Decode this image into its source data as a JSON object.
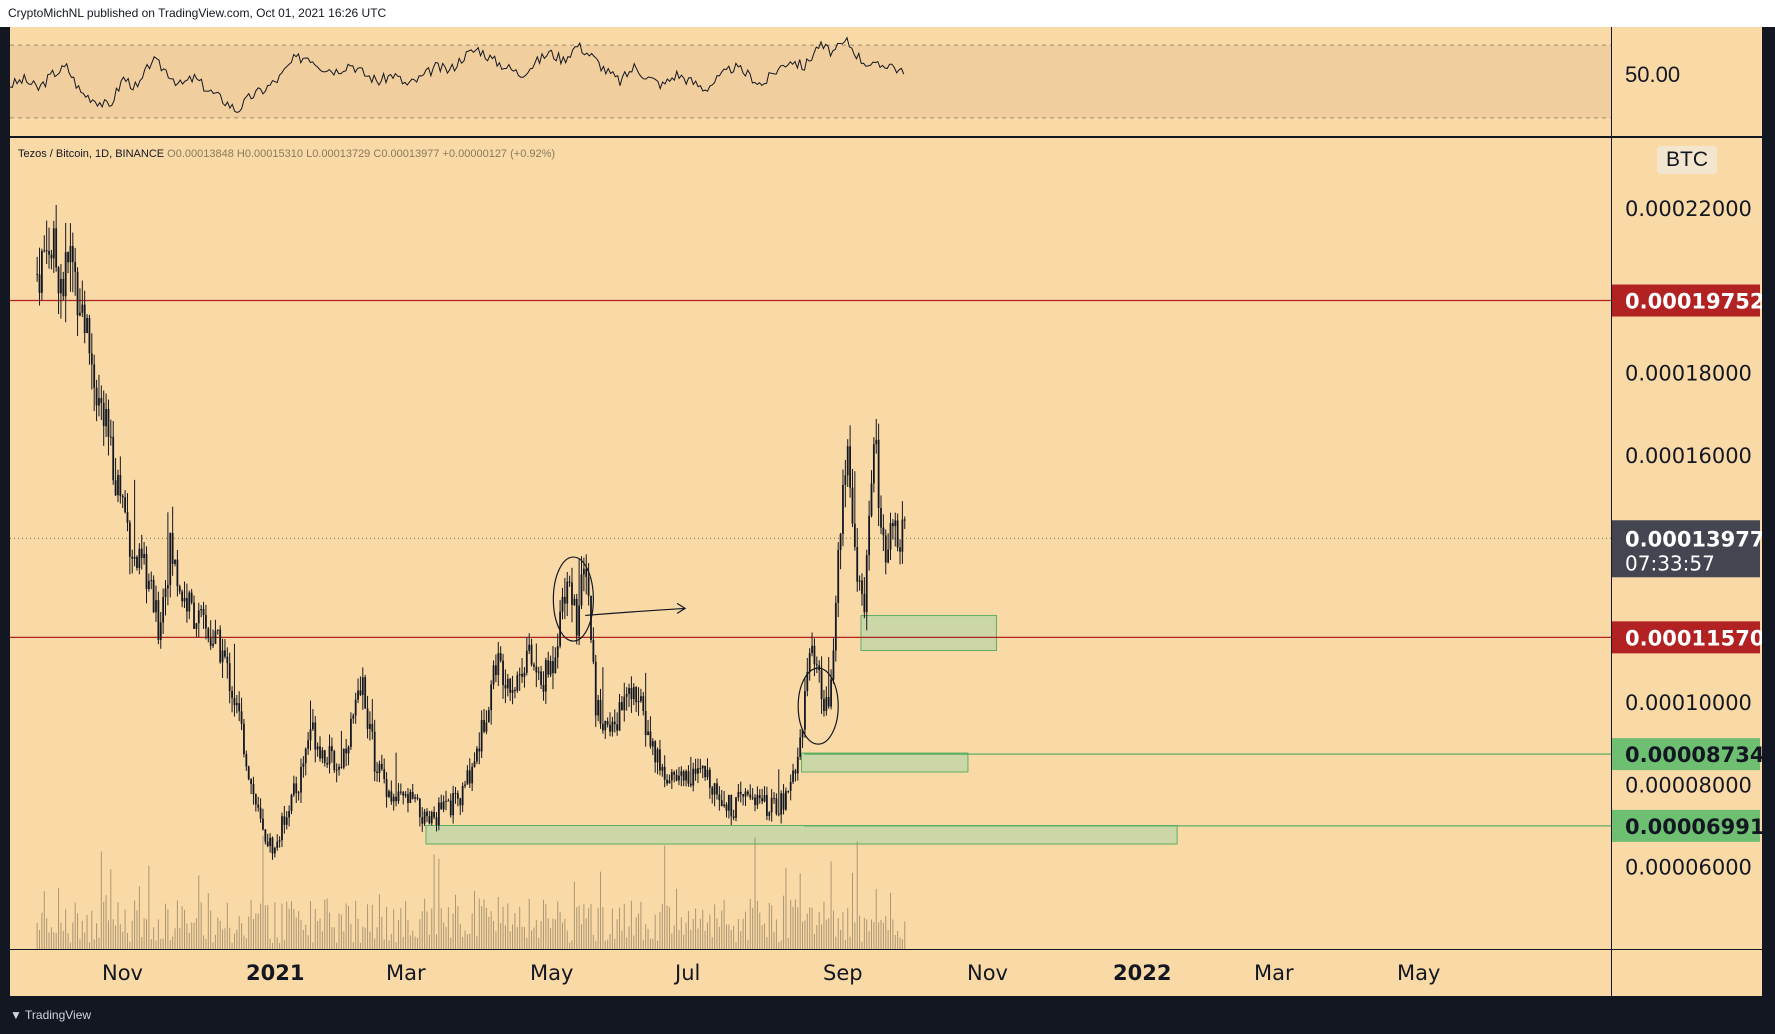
{
  "header": {
    "published": "CryptoMichNL published on TradingView.com, Oct 01, 2021 16:26 UTC"
  },
  "footer": {
    "brand": "TradingView",
    "logo_icon": "tradingview-logo-icon"
  },
  "legend": {
    "symbol": "Tezos / Bitcoin, 1D, BINANCE",
    "open_label": "O",
    "open": "0.00013848",
    "high_label": "H",
    "high": "0.00015310",
    "low_label": "L",
    "low": "0.00013729",
    "close_label": "C",
    "close": "0.00013977",
    "change": "+0.00000127 (+0.92%)"
  },
  "colors": {
    "background": "#f9d9a6",
    "candle": "#131722",
    "resistance": "#b22222",
    "support_zone": "#a5d6a7",
    "support_line": "#5dae63",
    "current_tag": "#434651"
  },
  "chart_data": {
    "type": "candlestick",
    "price_unit": "BTC",
    "yaxis_ticks": [
      "0.00022000",
      "0.00018000",
      "0.00016000",
      "0.00010000",
      "0.00008000",
      "0.00006000"
    ],
    "ylim": [
      4e-05,
      0.000237
    ],
    "xaxis_ticks": [
      {
        "label": "Nov",
        "bold": false
      },
      {
        "label": "2021",
        "bold": true
      },
      {
        "label": "Mar",
        "bold": false
      },
      {
        "label": "May",
        "bold": false
      },
      {
        "label": "Jul",
        "bold": false
      },
      {
        "label": "Sep",
        "bold": false
      },
      {
        "label": "Nov",
        "bold": false
      },
      {
        "label": "2022",
        "bold": true
      },
      {
        "label": "Mar",
        "bold": false
      },
      {
        "label": "May",
        "bold": false
      }
    ],
    "price_path": [
      [
        "2020-10-01",
        0.000204
      ],
      [
        "2020-10-06",
        0.000212
      ],
      [
        "2020-10-12",
        0.000202
      ],
      [
        "2020-10-15",
        0.000208
      ],
      [
        "2020-10-20",
        0.000196
      ],
      [
        "2020-10-26",
        0.000176
      ],
      [
        "2020-11-01",
        0.00016
      ],
      [
        "2020-11-06",
        0.000149
      ],
      [
        "2020-11-11",
        0.000134
      ],
      [
        "2020-11-16",
        0.000131
      ],
      [
        "2020-11-21",
        0.000118
      ],
      [
        "2020-11-26",
        0.000137
      ],
      [
        "2020-12-01",
        0.000126
      ],
      [
        "2020-12-10",
        0.000118
      ],
      [
        "2020-12-18",
        0.000112
      ],
      [
        "2020-12-25",
        9.6e-05
      ],
      [
        "2020-12-30",
        8e-05
      ],
      [
        "2021-01-04",
        6.8e-05
      ],
      [
        "2021-01-09",
        6.4e-05
      ],
      [
        "2021-01-14",
        7.4e-05
      ],
      [
        "2021-01-19",
        8e-05
      ],
      [
        "2021-01-24",
        9.4e-05
      ],
      [
        "2021-01-29",
        8.8e-05
      ],
      [
        "2021-02-05",
        8.4e-05
      ],
      [
        "2021-02-10",
        9.4e-05
      ],
      [
        "2021-02-15",
        0.000104
      ],
      [
        "2021-02-20",
        8.6e-05
      ],
      [
        "2021-02-28",
        7.6e-05
      ],
      [
        "2021-03-08",
        7.6e-05
      ],
      [
        "2021-03-14",
        7e-05
      ],
      [
        "2021-03-20",
        7.4e-05
      ],
      [
        "2021-03-28",
        7.6e-05
      ],
      [
        "2021-04-05",
        9e-05
      ],
      [
        "2021-04-12",
        0.00011
      ],
      [
        "2021-04-20",
        0.000104
      ],
      [
        "2021-04-25",
        0.000112
      ],
      [
        "2021-05-01",
        0.000104
      ],
      [
        "2021-05-06",
        0.00011
      ],
      [
        "2021-05-12",
        0.000132
      ],
      [
        "2021-05-16",
        0.00012
      ],
      [
        "2021-05-20",
        0.000134
      ],
      [
        "2021-05-24",
        0.0001
      ],
      [
        "2021-05-30",
        9.2e-05
      ],
      [
        "2021-06-05",
        0.0001
      ],
      [
        "2021-06-10",
        0.000102
      ],
      [
        "2021-06-16",
        9e-05
      ],
      [
        "2021-06-22",
        8.2e-05
      ],
      [
        "2021-07-01",
        8.2e-05
      ],
      [
        "2021-07-10",
        8.2e-05
      ],
      [
        "2021-07-20",
        7.4e-05
      ],
      [
        "2021-07-28",
        7.8e-05
      ],
      [
        "2021-08-05",
        7.4e-05
      ],
      [
        "2021-08-12",
        7.6e-05
      ],
      [
        "2021-08-18",
        9e-05
      ],
      [
        "2021-08-22",
        0.000112
      ],
      [
        "2021-08-26",
        0.000104
      ],
      [
        "2021-08-30",
        9.6e-05
      ],
      [
        "2021-09-03",
        0.000136
      ],
      [
        "2021-09-07",
        0.000162
      ],
      [
        "2021-09-10",
        0.000138
      ],
      [
        "2021-09-14",
        0.00012
      ],
      [
        "2021-09-18",
        0.000166
      ],
      [
        "2021-09-22",
        0.000136
      ],
      [
        "2021-09-26",
        0.00014
      ],
      [
        "2021-10-01",
        0.00013977
      ]
    ],
    "levels": [
      {
        "label": "0.00019752",
        "price": 0.00019752,
        "kind": "resistance"
      },
      {
        "label": "0.00011570",
        "price": 0.0001157,
        "kind": "resistance"
      },
      {
        "label": "0.00008734",
        "price": 8.734e-05,
        "kind": "support"
      },
      {
        "label": "0.00006991",
        "price": 6.991e-05,
        "kind": "support"
      }
    ],
    "current": {
      "price_label": "0.00013977",
      "countdown": "07:33:57",
      "price": 0.00013977
    },
    "zones": [
      {
        "from": "2021-09-13",
        "to": "2021-11-09",
        "low": 0.0001125,
        "high": 0.000121
      },
      {
        "from": "2021-08-19",
        "to": "2021-10-28",
        "low": 8.3e-05,
        "high": 8.76e-05
      },
      {
        "from": "2021-03-14",
        "to": "2022-01-24",
        "low": 6.55e-05,
        "high": 7e-05
      }
    ],
    "annotations": [
      {
        "type": "ellipse",
        "date": "2021-05-15",
        "price": 0.000125
      },
      {
        "type": "arrow",
        "from_date": "2021-05-20",
        "to_date": "2021-07-01",
        "price": 0.000122
      },
      {
        "type": "ellipse",
        "date": "2021-08-26",
        "price": 9.9e-05
      }
    ],
    "rsi": {
      "level_label": "50.00",
      "upper": 70,
      "lower": 30,
      "ylim": [
        20,
        80
      ],
      "values": [
        48,
        51,
        46,
        54,
        58,
        44,
        40,
        36,
        52,
        46,
        62,
        56,
        48,
        52,
        45,
        40,
        34,
        42,
        46,
        52,
        62,
        64,
        58,
        56,
        60,
        54,
        50,
        54,
        48,
        52,
        58,
        56,
        64,
        68,
        62,
        58,
        54,
        60,
        66,
        62,
        70,
        64,
        56,
        50,
        58,
        52,
        48,
        54,
        50,
        46,
        52,
        58,
        54,
        48,
        56,
        62,
        58,
        70,
        66,
        72,
        62,
        58,
        60,
        54
      ]
    }
  }
}
